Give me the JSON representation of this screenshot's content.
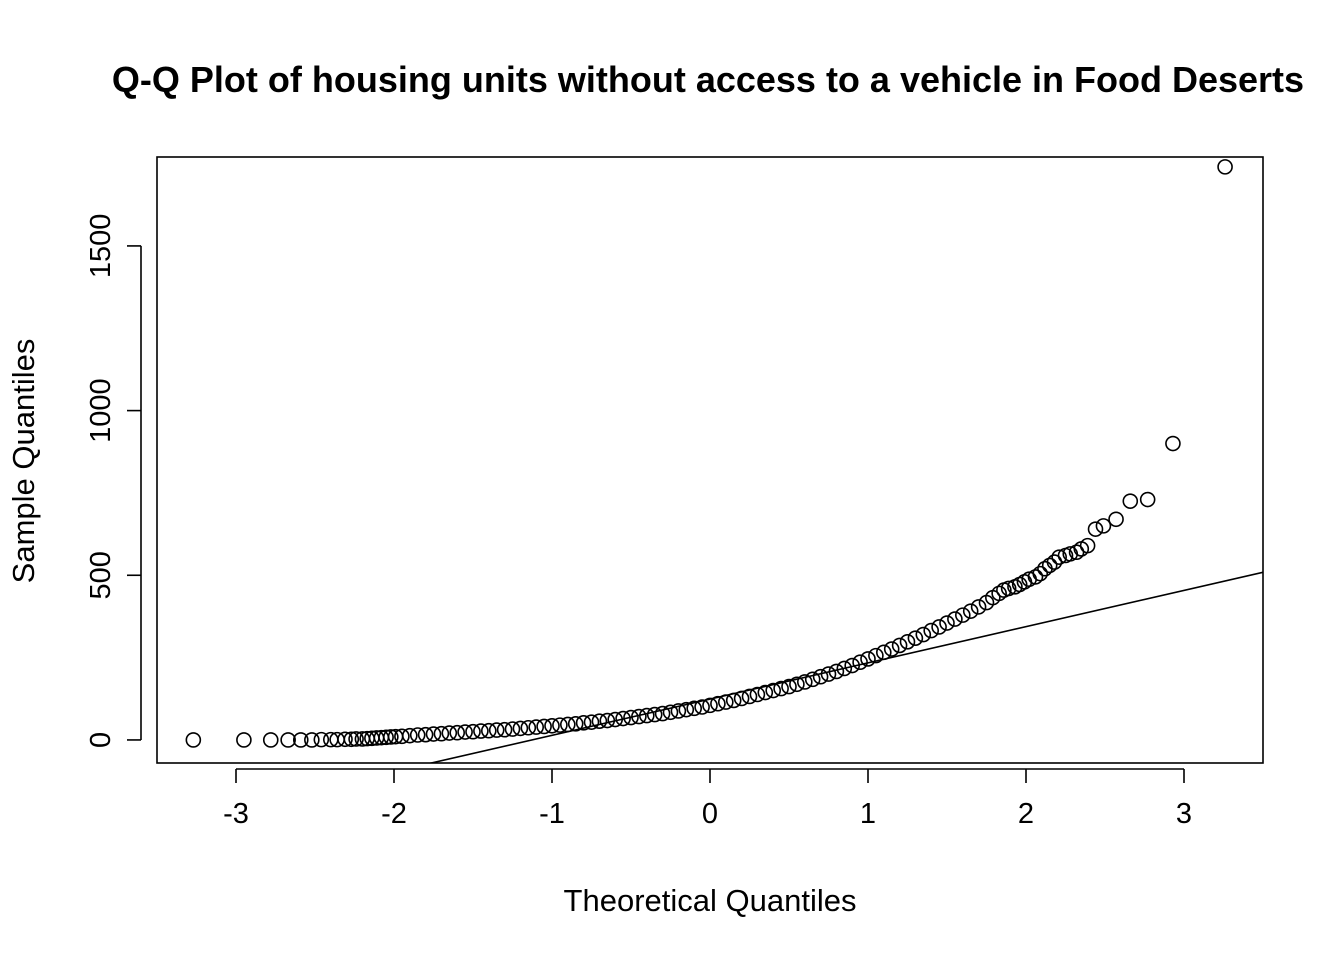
{
  "chart_data": {
    "type": "scatter",
    "title": "Q-Q Plot of housing units without access to a vehicle in Food Deserts",
    "xlabel": "Theoretical Quantiles",
    "ylabel": "Sample Quantiles",
    "xlim": [
      -3.5,
      3.5
    ],
    "ylim": [
      -70,
      1770
    ],
    "x_ticks": [
      -3,
      -2,
      -1,
      0,
      1,
      2,
      3
    ],
    "y_ticks": [
      0,
      500,
      1000,
      1500
    ],
    "grid": false,
    "legend": "none",
    "reference_line": {
      "intercept": 124,
      "slope": 110
    },
    "points": [
      [
        -3.27,
        0
      ],
      [
        -2.95,
        0
      ],
      [
        -2.78,
        0
      ],
      [
        -2.67,
        0
      ],
      [
        -2.59,
        0
      ],
      [
        -2.52,
        0
      ],
      [
        -2.46,
        1
      ],
      [
        -2.4,
        1
      ],
      [
        -2.36,
        1
      ],
      [
        -2.31,
        2
      ],
      [
        -2.27,
        2
      ],
      [
        -2.24,
        3
      ],
      [
        -2.2,
        3
      ],
      [
        -2.17,
        4
      ],
      [
        -2.14,
        5
      ],
      [
        -2.11,
        6
      ],
      [
        -2.08,
        7
      ],
      [
        -2.05,
        8
      ],
      [
        -2.02,
        9
      ],
      [
        -1.99,
        10
      ],
      [
        -1.95,
        11
      ],
      [
        -1.9,
        13
      ],
      [
        -1.85,
        15
      ],
      [
        -1.8,
        16
      ],
      [
        -1.75,
        18
      ],
      [
        -1.7,
        19
      ],
      [
        -1.65,
        21
      ],
      [
        -1.6,
        22
      ],
      [
        -1.55,
        24
      ],
      [
        -1.5,
        25
      ],
      [
        -1.45,
        27
      ],
      [
        -1.4,
        28
      ],
      [
        -1.35,
        30
      ],
      [
        -1.3,
        31
      ],
      [
        -1.25,
        33
      ],
      [
        -1.2,
        35
      ],
      [
        -1.15,
        37
      ],
      [
        -1.1,
        39
      ],
      [
        -1.05,
        41
      ],
      [
        -1.0,
        43
      ],
      [
        -0.95,
        45
      ],
      [
        -0.9,
        47
      ],
      [
        -0.85,
        49
      ],
      [
        -0.8,
        52
      ],
      [
        -0.75,
        54
      ],
      [
        -0.7,
        57
      ],
      [
        -0.65,
        59
      ],
      [
        -0.6,
        62
      ],
      [
        -0.55,
        65
      ],
      [
        -0.5,
        68
      ],
      [
        -0.45,
        71
      ],
      [
        -0.4,
        74
      ],
      [
        -0.35,
        77
      ],
      [
        -0.3,
        80
      ],
      [
        -0.25,
        84
      ],
      [
        -0.2,
        88
      ],
      [
        -0.15,
        92
      ],
      [
        -0.1,
        96
      ],
      [
        -0.05,
        100
      ],
      [
        0.0,
        105
      ],
      [
        0.05,
        110
      ],
      [
        0.1,
        115
      ],
      [
        0.15,
        120
      ],
      [
        0.2,
        126
      ],
      [
        0.25,
        132
      ],
      [
        0.3,
        138
      ],
      [
        0.35,
        144
      ],
      [
        0.4,
        150
      ],
      [
        0.45,
        156
      ],
      [
        0.5,
        162
      ],
      [
        0.55,
        169
      ],
      [
        0.6,
        176
      ],
      [
        0.65,
        184
      ],
      [
        0.7,
        192
      ],
      [
        0.75,
        200
      ],
      [
        0.8,
        208
      ],
      [
        0.85,
        217
      ],
      [
        0.9,
        226
      ],
      [
        0.95,
        236
      ],
      [
        1.0,
        246
      ],
      [
        1.05,
        256
      ],
      [
        1.1,
        266
      ],
      [
        1.15,
        276
      ],
      [
        1.2,
        287
      ],
      [
        1.25,
        298
      ],
      [
        1.3,
        309
      ],
      [
        1.35,
        320
      ],
      [
        1.4,
        332
      ],
      [
        1.45,
        343
      ],
      [
        1.5,
        355
      ],
      [
        1.55,
        367
      ],
      [
        1.6,
        379
      ],
      [
        1.65,
        391
      ],
      [
        1.7,
        404
      ],
      [
        1.75,
        417
      ],
      [
        1.79,
        432
      ],
      [
        1.83,
        445
      ],
      [
        1.86,
        455
      ],
      [
        1.89,
        460
      ],
      [
        1.93,
        465
      ],
      [
        1.96,
        472
      ],
      [
        1.99,
        480
      ],
      [
        2.02,
        488
      ],
      [
        2.06,
        495
      ],
      [
        2.09,
        505
      ],
      [
        2.12,
        520
      ],
      [
        2.15,
        530
      ],
      [
        2.18,
        540
      ],
      [
        2.21,
        555
      ],
      [
        2.25,
        560
      ],
      [
        2.28,
        565
      ],
      [
        2.32,
        570
      ],
      [
        2.35,
        580
      ],
      [
        2.39,
        590
      ],
      [
        2.44,
        640
      ],
      [
        2.49,
        650
      ],
      [
        2.57,
        670
      ],
      [
        2.66,
        725
      ],
      [
        2.77,
        730
      ],
      [
        2.93,
        900
      ],
      [
        3.26,
        1740
      ]
    ]
  }
}
